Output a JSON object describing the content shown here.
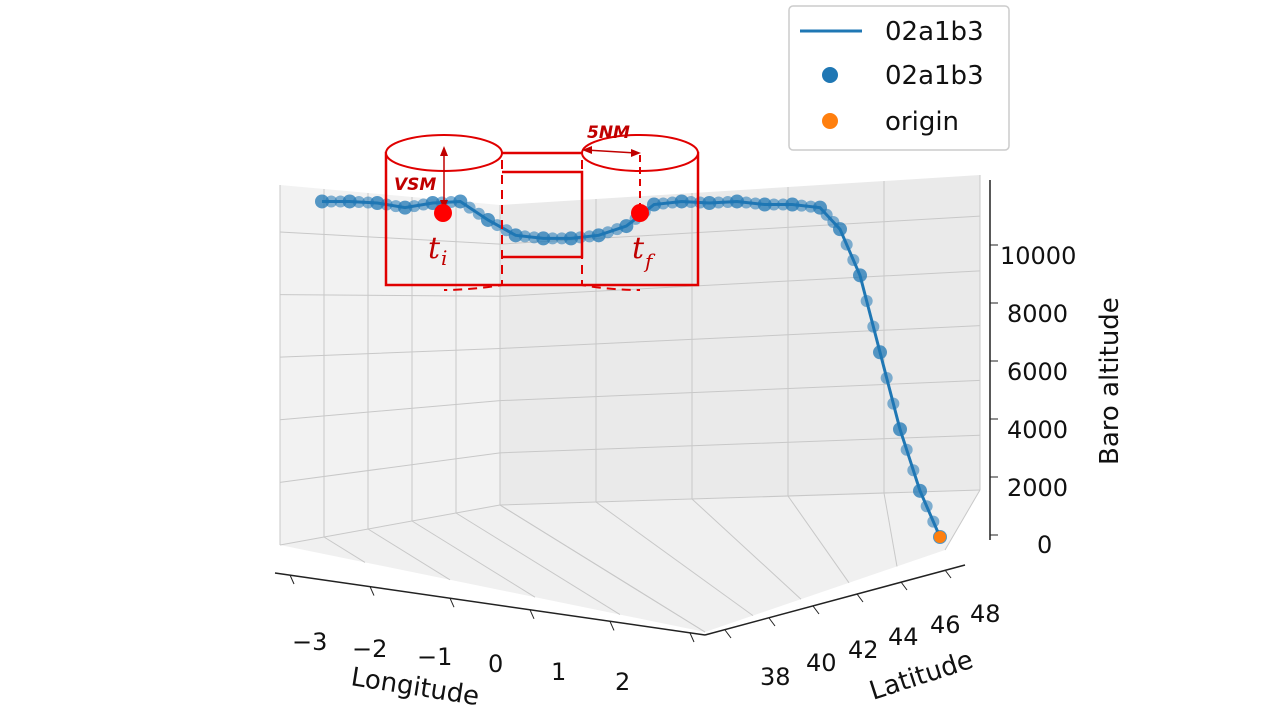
{
  "chart_data": {
    "type": "line",
    "projection": "3d",
    "title": "",
    "xlabel": "Longitude",
    "ylabel": "Latitude",
    "zlabel": "Baro altitude",
    "x_ticks": [
      "−3",
      "−2",
      "−1",
      "0",
      "1",
      "2"
    ],
    "y_ticks": [
      "38",
      "40",
      "42",
      "44",
      "46",
      "48"
    ],
    "z_ticks": [
      "0",
      "2000",
      "4000",
      "6000",
      "8000",
      "10000"
    ],
    "zlim": [
      0,
      11500
    ],
    "grid": true,
    "legend": {
      "placement": "top-right",
      "entries": [
        {
          "label": "02a1b3",
          "marker": "line",
          "color": "#1f77b4"
        },
        {
          "label": "02a1b3",
          "marker": "dot",
          "color": "#1f77b4"
        },
        {
          "label": "origin",
          "marker": "dot",
          "color": "#ff7f0e"
        }
      ]
    },
    "series": [
      {
        "name": "02a1b3",
        "color": "#1f77b4",
        "points": [
          {
            "lon": -2.3,
            "lat": 47.0,
            "alt": 10900
          },
          {
            "lon": -2.0,
            "lat": 46.8,
            "alt": 10900
          },
          {
            "lon": -1.6,
            "lat": 46.5,
            "alt": 10850
          },
          {
            "lon": -1.3,
            "lat": 46.3,
            "alt": 10700
          },
          {
            "lon": -1.1,
            "lat": 46.1,
            "alt": 10850
          },
          {
            "lon": -0.8,
            "lat": 45.9,
            "alt": 10900
          },
          {
            "lon": -0.55,
            "lat": 45.7,
            "alt": 10300
          },
          {
            "lon": -0.35,
            "lat": 45.5,
            "alt": 9800
          },
          {
            "lon": -0.1,
            "lat": 45.3,
            "alt": 9700
          },
          {
            "lon": 0.2,
            "lat": 45.1,
            "alt": 9700
          },
          {
            "lon": 0.55,
            "lat": 44.9,
            "alt": 9800
          },
          {
            "lon": 0.8,
            "lat": 44.7,
            "alt": 10100
          },
          {
            "lon": 1.0,
            "lat": 44.5,
            "alt": 10800
          },
          {
            "lon": 1.2,
            "lat": 44.3,
            "alt": 10900
          },
          {
            "lon": 1.4,
            "lat": 44.1,
            "alt": 10850
          },
          {
            "lon": 1.6,
            "lat": 43.9,
            "alt": 10900
          },
          {
            "lon": 1.8,
            "lat": 43.7,
            "alt": 10800
          },
          {
            "lon": 2.0,
            "lat": 43.5,
            "alt": 10800
          },
          {
            "lon": 2.2,
            "lat": 43.2,
            "alt": 10700
          },
          {
            "lon": 2.35,
            "lat": 42.8,
            "alt": 10000
          },
          {
            "lon": 2.45,
            "lat": 42.3,
            "alt": 8500
          },
          {
            "lon": 2.55,
            "lat": 41.6,
            "alt": 6000
          },
          {
            "lon": 2.6,
            "lat": 41.0,
            "alt": 3500
          },
          {
            "lon": 2.65,
            "lat": 40.5,
            "alt": 1500
          },
          {
            "lon": 2.7,
            "lat": 40.0,
            "alt": 0
          }
        ]
      },
      {
        "name": "origin",
        "color": "#ff7f0e",
        "points": [
          {
            "lon": 2.7,
            "lat": 40.0,
            "alt": 0
          }
        ]
      }
    ],
    "annotations": [
      {
        "text": "VSM",
        "color": "#c00000"
      },
      {
        "text": "5NM",
        "color": "#c00000"
      },
      {
        "text": "t",
        "subscript": "i",
        "color": "#ff0000"
      },
      {
        "text": "t",
        "subscript": "f",
        "color": "#ff0000"
      }
    ]
  }
}
